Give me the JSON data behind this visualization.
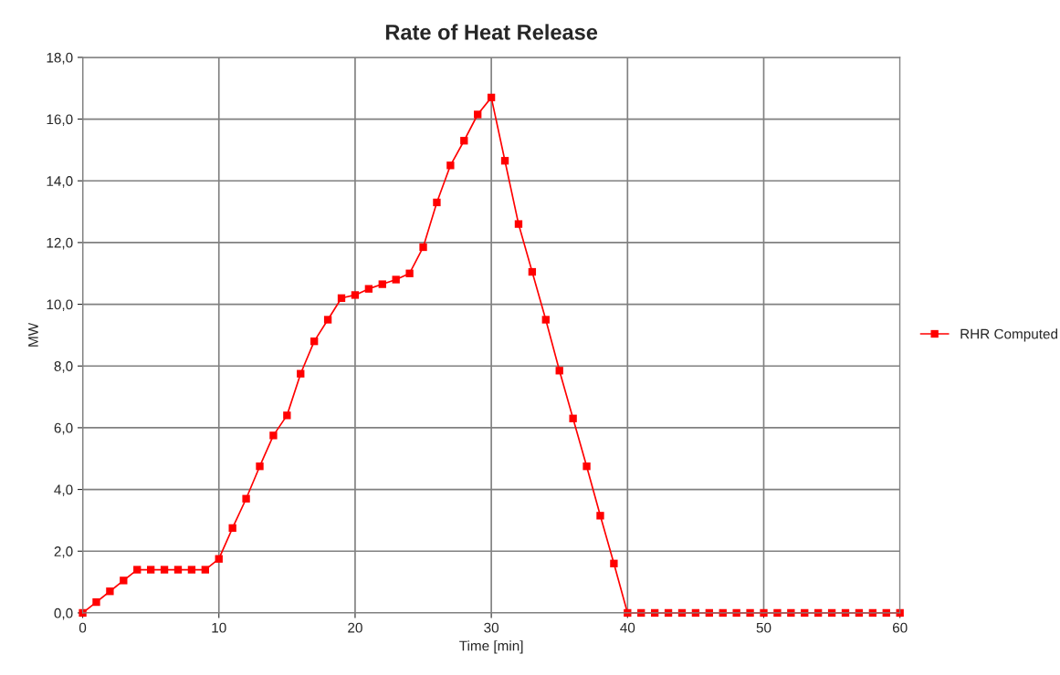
{
  "chart_data": {
    "type": "line",
    "title": "Rate of Heat Release",
    "xlabel": "Time [min]",
    "ylabel": "MW",
    "x": [
      0,
      1,
      2,
      3,
      4,
      5,
      6,
      7,
      8,
      9,
      10,
      11,
      12,
      13,
      14,
      15,
      16,
      17,
      18,
      19,
      20,
      21,
      22,
      23,
      24,
      25,
      26,
      27,
      28,
      29,
      30,
      31,
      32,
      33,
      34,
      35,
      36,
      37,
      38,
      39,
      40,
      41,
      42,
      43,
      44,
      45,
      46,
      47,
      48,
      49,
      50,
      51,
      52,
      53,
      54,
      55,
      56,
      57,
      58,
      59,
      60
    ],
    "series": [
      {
        "name": "RHR Computed",
        "color": "#ff0000",
        "values": [
          0,
          0.35,
          0.7,
          1.05,
          1.4,
          1.4,
          1.4,
          1.4,
          1.4,
          1.4,
          1.75,
          2.75,
          3.7,
          4.75,
          5.75,
          6.4,
          7.75,
          8.8,
          9.5,
          10.2,
          10.3,
          10.5,
          10.65,
          10.8,
          11.0,
          11.85,
          13.3,
          14.5,
          15.3,
          16.15,
          16.7,
          14.65,
          12.6,
          11.05,
          9.5,
          7.85,
          6.3,
          4.75,
          3.15,
          1.6,
          0,
          0,
          0,
          0,
          0,
          0,
          0,
          0,
          0,
          0,
          0,
          0,
          0,
          0,
          0,
          0,
          0,
          0,
          0,
          0,
          0
        ]
      }
    ],
    "xlim": [
      0,
      60
    ],
    "xticks": [
      0,
      10,
      20,
      30,
      40,
      50,
      60
    ],
    "ylim": [
      0,
      18
    ],
    "yticks": [
      {
        "value": 0,
        "label": "0,0"
      },
      {
        "value": 2,
        "label": "2,0"
      },
      {
        "value": 4,
        "label": "4,0"
      },
      {
        "value": 6,
        "label": "6,0"
      },
      {
        "value": 8,
        "label": "8,0"
      },
      {
        "value": 10,
        "label": "10,0"
      },
      {
        "value": 12,
        "label": "12,0"
      },
      {
        "value": 14,
        "label": "14,0"
      },
      {
        "value": 16,
        "label": "16,0"
      },
      {
        "value": 18,
        "label": "18,0"
      }
    ],
    "grid": true,
    "legend": "right",
    "marker": "square",
    "line_style": "solid"
  }
}
